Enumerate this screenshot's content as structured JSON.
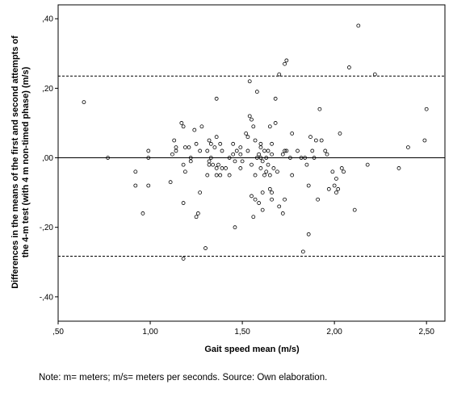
{
  "chart_data": {
    "type": "scatter",
    "title": "",
    "xlabel": "Gait speed mean (m/s)",
    "ylabel_lines": [
      "Differences in the means of the first and second attempts of",
      "the 4-m test (with 4 m non-timed phase) (m/s)"
    ],
    "xlim": [
      0.5,
      2.6
    ],
    "ylim": [
      -0.47,
      0.44
    ],
    "x_ticks": [
      0.5,
      1.0,
      1.5,
      2.0,
      2.5
    ],
    "x_tick_labels": [
      ",50",
      "1,00",
      "1,50",
      "2,00",
      "2,50"
    ],
    "y_ticks": [
      -0.4,
      -0.2,
      0.0,
      0.2,
      0.4
    ],
    "y_tick_labels": [
      "-,40",
      "-,20",
      ",00",
      ",20",
      ",40"
    ],
    "reference_lines": {
      "mean_difference": 0.0,
      "upper_limit_of_agreement": 0.235,
      "lower_limit_of_agreement": -0.283
    },
    "grid": false,
    "legend": "none",
    "colors": {
      "points": "#000000",
      "mean_line": "#000000",
      "limit_lines": "#000000",
      "background": "#ffffff"
    },
    "points": [
      [
        0.64,
        0.16
      ],
      [
        0.77,
        0.0
      ],
      [
        0.92,
        -0.04
      ],
      [
        0.92,
        -0.08
      ],
      [
        0.96,
        -0.16
      ],
      [
        0.99,
        0.02
      ],
      [
        0.99,
        0.0
      ],
      [
        0.99,
        -0.08
      ],
      [
        1.11,
        -0.07
      ],
      [
        1.12,
        0.01
      ],
      [
        1.13,
        0.05
      ],
      [
        1.14,
        0.03
      ],
      [
        1.14,
        0.02
      ],
      [
        1.17,
        0.1
      ],
      [
        1.18,
        0.09
      ],
      [
        1.18,
        -0.02
      ],
      [
        1.18,
        -0.13
      ],
      [
        1.18,
        -0.29
      ],
      [
        1.19,
        0.03
      ],
      [
        1.19,
        -0.04
      ],
      [
        1.21,
        0.03
      ],
      [
        1.22,
        0.0
      ],
      [
        1.22,
        -0.01
      ],
      [
        1.24,
        0.08
      ],
      [
        1.25,
        0.04
      ],
      [
        1.25,
        -0.17
      ],
      [
        1.26,
        -0.16
      ],
      [
        1.27,
        0.02
      ],
      [
        1.27,
        -0.1
      ],
      [
        1.28,
        0.09
      ],
      [
        1.3,
        -0.26
      ],
      [
        1.31,
        0.02
      ],
      [
        1.31,
        -0.05
      ],
      [
        1.32,
        0.05
      ],
      [
        1.32,
        -0.01
      ],
      [
        1.32,
        -0.02
      ],
      [
        1.33,
        0.04
      ],
      [
        1.33,
        0.0
      ],
      [
        1.34,
        -0.02
      ],
      [
        1.35,
        0.03
      ],
      [
        1.36,
        0.06
      ],
      [
        1.36,
        0.17
      ],
      [
        1.36,
        -0.03
      ],
      [
        1.36,
        -0.05
      ],
      [
        1.37,
        -0.02
      ],
      [
        1.38,
        0.04
      ],
      [
        1.38,
        -0.05
      ],
      [
        1.39,
        -0.03
      ],
      [
        1.39,
        0.02
      ],
      [
        1.41,
        -0.03
      ],
      [
        1.43,
        0.0
      ],
      [
        1.43,
        -0.05
      ],
      [
        1.45,
        0.04
      ],
      [
        1.45,
        0.01
      ],
      [
        1.46,
        -0.01
      ],
      [
        1.46,
        -0.2
      ],
      [
        1.47,
        0.02
      ],
      [
        1.49,
        0.03
      ],
      [
        1.49,
        0.01
      ],
      [
        1.49,
        -0.03
      ],
      [
        1.5,
        -0.01
      ],
      [
        1.52,
        0.07
      ],
      [
        1.53,
        0.06
      ],
      [
        1.53,
        0.02
      ],
      [
        1.54,
        0.22
      ],
      [
        1.54,
        0.12
      ],
      [
        1.55,
        0.11
      ],
      [
        1.55,
        -0.02
      ],
      [
        1.55,
        -0.11
      ],
      [
        1.56,
        0.09
      ],
      [
        1.56,
        -0.17
      ],
      [
        1.57,
        0.05
      ],
      [
        1.57,
        -0.05
      ],
      [
        1.57,
        -0.12
      ],
      [
        1.58,
        0.19
      ],
      [
        1.58,
        0.0
      ],
      [
        1.59,
        -0.13
      ],
      [
        1.59,
        0.01
      ],
      [
        1.6,
        0.04
      ],
      [
        1.6,
        0.03
      ],
      [
        1.6,
        0.0
      ],
      [
        1.6,
        -0.03
      ],
      [
        1.61,
        -0.01
      ],
      [
        1.61,
        -0.1
      ],
      [
        1.61,
        -0.15
      ],
      [
        1.62,
        0.02
      ],
      [
        1.62,
        -0.05
      ],
      [
        1.63,
        0.0
      ],
      [
        1.63,
        -0.04
      ],
      [
        1.64,
        0.02
      ],
      [
        1.64,
        -0.02
      ],
      [
        1.65,
        0.09
      ],
      [
        1.65,
        -0.05
      ],
      [
        1.65,
        -0.09
      ],
      [
        1.66,
        0.04
      ],
      [
        1.66,
        0.01
      ],
      [
        1.66,
        -0.1
      ],
      [
        1.66,
        -0.12
      ],
      [
        1.67,
        -0.03
      ],
      [
        1.68,
        0.17
      ],
      [
        1.68,
        0.1
      ],
      [
        1.69,
        -0.04
      ],
      [
        1.7,
        0.24
      ],
      [
        1.7,
        -0.14
      ],
      [
        1.72,
        0.01
      ],
      [
        1.72,
        -0.16
      ],
      [
        1.73,
        0.27
      ],
      [
        1.73,
        0.02
      ],
      [
        1.73,
        -0.12
      ],
      [
        1.74,
        0.28
      ],
      [
        1.74,
        0.02
      ],
      [
        1.76,
        0.0
      ],
      [
        1.77,
        0.07
      ],
      [
        1.77,
        -0.05
      ],
      [
        1.8,
        0.02
      ],
      [
        1.82,
        0.0
      ],
      [
        1.83,
        -0.27
      ],
      [
        1.84,
        0.0
      ],
      [
        1.85,
        -0.02
      ],
      [
        1.86,
        -0.08
      ],
      [
        1.86,
        -0.22
      ],
      [
        1.87,
        0.06
      ],
      [
        1.88,
        0.02
      ],
      [
        1.89,
        0.0
      ],
      [
        1.9,
        0.05
      ],
      [
        1.91,
        -0.12
      ],
      [
        1.92,
        0.14
      ],
      [
        1.93,
        0.05
      ],
      [
        1.95,
        0.02
      ],
      [
        1.96,
        0.01
      ],
      [
        1.97,
        -0.09
      ],
      [
        1.99,
        -0.04
      ],
      [
        2.0,
        -0.08
      ],
      [
        2.01,
        -0.1
      ],
      [
        2.01,
        -0.06
      ],
      [
        2.02,
        -0.09
      ],
      [
        2.03,
        0.07
      ],
      [
        2.04,
        -0.03
      ],
      [
        2.05,
        -0.04
      ],
      [
        2.08,
        0.26
      ],
      [
        2.11,
        -0.15
      ],
      [
        2.13,
        0.38
      ],
      [
        2.18,
        -0.02
      ],
      [
        2.22,
        0.24
      ],
      [
        2.35,
        -0.03
      ],
      [
        2.4,
        0.03
      ],
      [
        2.49,
        0.05
      ],
      [
        2.5,
        0.14
      ]
    ]
  },
  "note": "Note: m= meters; m/s= meters per seconds. Source: Own elaboration."
}
